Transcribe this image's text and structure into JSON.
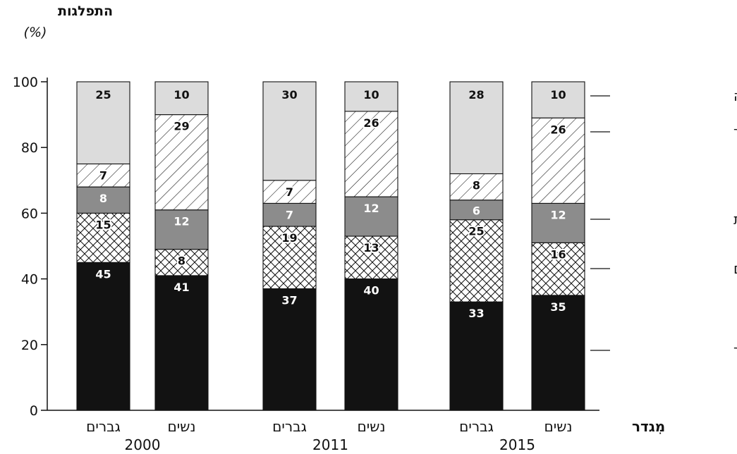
{
  "chart_data": {
    "type": "bar",
    "stacked": true,
    "ylabel": "התפלגות",
    "yunit": "(%)",
    "xlabel": "מִגדר",
    "ylim": [
      0,
      100
    ],
    "yticks": [
      0,
      20,
      40,
      60,
      80,
      100
    ],
    "bars": [
      {
        "category": "גברים",
        "year": "2000"
      },
      {
        "category": "נשים",
        "year": "2000"
      },
      {
        "category": "גברים",
        "year": "2011"
      },
      {
        "category": "נשים",
        "year": "2011"
      },
      {
        "category": "גברים",
        "year": "2015"
      },
      {
        "category": "נשים",
        "year": "2015"
      }
    ],
    "years": [
      "2000",
      "2011",
      "2015"
    ],
    "series": [
      {
        "name": "אחר",
        "fill": "black",
        "values": [
          45,
          41,
          37,
          40,
          33,
          35
        ]
      },
      {
        "name": "עסקים",
        "fill": "crosshatch",
        "values": [
          15,
          8,
          19,
          13,
          25,
          16
        ]
      },
      {
        "name": "בריאות",
        "fill": "gray",
        "values": [
          8,
          12,
          7,
          12,
          6,
          12
        ]
      },
      {
        "name": "חינוך",
        "fill": "diagonal",
        "values": [
          7,
          29,
          7,
          26,
          8,
          26
        ]
      },
      {
        "name": "מדע וטכנולוגיה",
        "fill": "lightgray",
        "values": [
          25,
          10,
          30,
          10,
          28,
          10
        ]
      }
    ],
    "colors": {
      "black": "#121212",
      "gray": "#8c8c8c",
      "lightgray": "#dcdcdc"
    }
  }
}
